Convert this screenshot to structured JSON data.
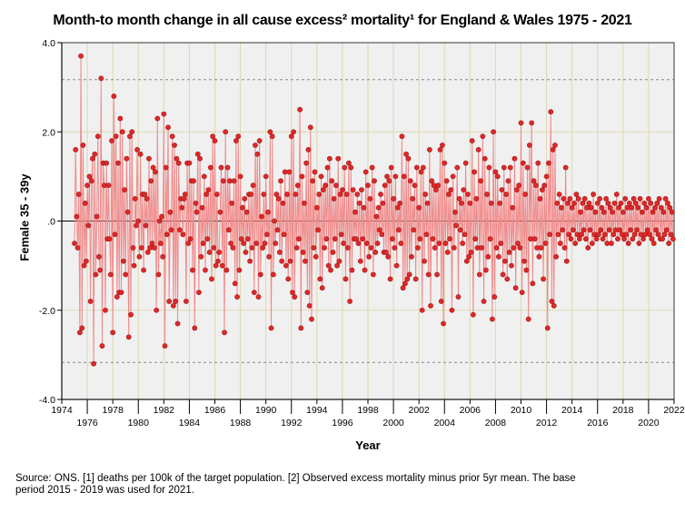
{
  "chart_data": {
    "type": "line",
    "title": "Month-to month change in all cause excess² mortality¹  for England & Wales 1975 - 2021",
    "xlabel": "Year",
    "ylabel": "Female 35 - 39y",
    "xlim": [
      1974,
      2022
    ],
    "ylim": [
      -4.0,
      4.0
    ],
    "x_ticks": [
      "1974",
      "1976",
      "1978",
      "1980",
      "1982",
      "1984",
      "1986",
      "1988",
      "1990",
      "1992",
      "1994",
      "1996",
      "1998",
      "2000",
      "2002",
      "2004",
      "2006",
      "2008",
      "2010",
      "2012",
      "2014",
      "2016",
      "2018",
      "2020",
      "2022"
    ],
    "y_ticks": [
      {
        "v": 4,
        "label": "4.0"
      },
      {
        "v": 2,
        "label": "2.0"
      },
      {
        "v": 0,
        "label": ".0"
      },
      {
        "v": -2,
        "label": "-2.0"
      },
      {
        "v": -4,
        "label": "-4.0"
      }
    ],
    "reference_lines": {
      "zero": 0,
      "upper_dashed": 3.17,
      "lower_dashed": -3.17
    },
    "grid": true,
    "start_year": 1975,
    "series": [
      {
        "name": "Female 35 - 39y",
        "color": "#e02828",
        "values_monthly": [
          -0.5,
          1.6,
          0.1,
          -0.6,
          0.6,
          -2.5,
          3.7,
          -2.4,
          1.7,
          -1.0,
          0.4,
          -0.9,
          0.8,
          -0.1,
          1.0,
          -1.8,
          0.9,
          1.4,
          -3.2,
          1.5,
          -1.2,
          0.1,
          1.9,
          -0.8,
          -1.1,
          3.2,
          -2.8,
          1.3,
          0.8,
          -2.0,
          1.3,
          -0.4,
          0.8,
          -0.4,
          -1.2,
          1.8,
          -2.5,
          2.8,
          -0.3,
          1.9,
          -1.7,
          1.3,
          -1.6,
          2.3,
          -1.6,
          2.0,
          -0.9,
          0.7,
          -1.2,
          1.4,
          0.2,
          -2.6,
          1.9,
          -2.1,
          2.0,
          -0.6,
          -1.0,
          0.5,
          -0.1,
          1.6,
          0.0,
          -0.8,
          1.5,
          -0.6,
          0.6,
          -1.1,
          0.6,
          -0.1,
          0.5,
          -0.7,
          1.4,
          -0.6,
          0.9,
          -0.5,
          1.2,
          -0.6,
          1.1,
          -2.0,
          2.3,
          -1.2,
          0.0,
          -0.5,
          0.1,
          -0.8,
          2.4,
          -2.8,
          1.2,
          -0.3,
          2.1,
          -1.8,
          0.2,
          -0.2,
          1.9,
          -1.9,
          1.7,
          -1.8,
          1.4,
          -2.3,
          1.3,
          -0.2,
          0.5,
          0.3,
          -0.3,
          0.5,
          0.6,
          -1.8,
          1.3,
          -0.5,
          1.3,
          -0.4,
          0.9,
          -1.1,
          0.9,
          -2.4,
          0.4,
          0.2,
          1.5,
          -1.6,
          1.4,
          -0.8,
          0.3,
          -0.5,
          1.0,
          -1.1,
          0.6,
          -0.4,
          0.7,
          -0.7,
          1.2,
          -1.3,
          1.9,
          -0.6,
          1.8,
          -1.0,
          0.6,
          -0.9,
          -0.7,
          0.2,
          1.2,
          -1.0,
          0.9,
          -2.5,
          2.0,
          -1.1,
          1.2,
          -0.2,
          0.9,
          -0.5,
          0.4,
          -0.6,
          0.9,
          -1.4,
          1.8,
          -1.7,
          1.9,
          -1.1,
          1.0,
          -0.4,
          0.3,
          -0.5,
          0.5,
          -0.7,
          0.2,
          -0.4,
          0.6,
          -0.9,
          0.6,
          -0.6,
          0.8,
          -1.6,
          1.7,
          -0.5,
          1.5,
          -1.7,
          1.8,
          -1.2,
          0.1,
          -0.6,
          0.6,
          -0.5,
          1.0,
          -0.3,
          0.2,
          -0.8,
          2.0,
          -2.4,
          1.9,
          -1.2,
          0.0,
          -0.5,
          0.6,
          -0.2,
          0.5,
          -0.7,
          0.9,
          -0.9,
          0.4,
          -0.3,
          1.1,
          -1.0,
          0.6,
          -1.3,
          1.1,
          -0.9,
          1.9,
          -1.6,
          2.0,
          -1.7,
          0.6,
          -0.6,
          0.8,
          -0.4,
          2.5,
          -2.4,
          1.0,
          -0.7,
          0.4,
          -0.9,
          1.3,
          -1.6,
          1.6,
          -1.9,
          2.1,
          -2.2,
          0.9,
          -0.6,
          1.1,
          -0.8,
          0.3,
          -0.2,
          0.6,
          -1.3,
          1.0,
          -1.5,
          0.7,
          -0.6,
          0.8,
          -0.4,
          1.2,
          -1.0,
          1.4,
          -1.1,
          0.9,
          -0.7,
          0.5,
          -0.4,
          0.8,
          -1.0,
          1.4,
          -0.9,
          0.6,
          -0.3,
          0.7,
          -0.5,
          1.2,
          -1.3,
          0.6,
          -0.6,
          1.3,
          -1.8,
          1.2,
          -1.1,
          0.7,
          -0.4,
          0.2,
          -0.4,
          0.6,
          -0.5,
          0.4,
          -0.9,
          0.7,
          -0.4,
          0.3,
          -1.1,
          1.1,
          -0.5,
          0.8,
          -0.8,
          0.5,
          -0.6,
          1.2,
          -1.2,
          0.9,
          -0.7,
          0.1,
          -0.5,
          0.3,
          -0.2,
          0.6,
          -0.3,
          0.4,
          -0.7,
          0.8,
          -0.7,
          1.0,
          -0.8,
          0.9,
          -1.3,
          1.2,
          -0.4,
          0.5,
          -0.6,
          1.0,
          -1.0,
          0.3,
          -0.2,
          0.4,
          -0.5,
          1.9,
          -1.5,
          1.0,
          -1.4,
          1.5,
          -1.3,
          1.4,
          -1.2,
          0.9,
          -0.8,
          0.5,
          -0.2,
          0.8,
          -1.3,
          1.2,
          -0.6,
          0.3,
          -0.4,
          1.1,
          -2.0,
          1.2,
          -0.9,
          0.6,
          -0.3,
          0.4,
          -1.2,
          1.6,
          -1.9,
          0.9,
          -0.4,
          0.8,
          -0.6,
          0.7,
          -1.2,
          0.8,
          -0.5,
          1.6,
          -1.8,
          1.7,
          -2.3,
          1.3,
          -0.5,
          0.9,
          -0.7,
          0.6,
          -0.4,
          0.7,
          -2.0,
          1.0,
          -0.6,
          0.2,
          -0.1,
          1.2,
          -1.7,
          0.5,
          -0.2,
          0.4,
          -0.5,
          0.7,
          -0.3,
          1.3,
          -0.9,
          0.6,
          -0.8,
          0.4,
          -0.7,
          1.8,
          -2.1,
          1.1,
          -0.4,
          0.5,
          -0.6,
          1.6,
          -1.2,
          0.9,
          -0.6,
          1.9,
          -1.8,
          1.4,
          -1.1,
          0.6,
          -0.8,
          1.2,
          -0.4,
          0.4,
          -2.2,
          2.0,
          -1.7,
          1.1,
          -0.6,
          1.0,
          -0.8,
          0.4,
          -0.5,
          0.7,
          -1.2,
          1.2,
          -0.9,
          0.6,
          -1.3,
          0.9,
          -0.7,
          1.2,
          -1.0,
          0.3,
          -0.6,
          1.4,
          -1.5,
          0.7,
          -0.5,
          0.8,
          -0.6,
          2.2,
          -1.6,
          1.3,
          -0.9,
          0.6,
          -1.1,
          1.2,
          -2.2,
          1.7,
          -0.4,
          2.2,
          -1.4,
          0.9,
          -0.4,
          0.8,
          -0.6,
          1.3,
          -0.8,
          0.5,
          -0.6,
          0.7,
          -1.3,
          0.8,
          -0.5,
          1.0,
          -2.4,
          1.3,
          -0.3,
          2.45,
          -1.8,
          1.6,
          -1.9,
          1.7,
          -0.8,
          0.4,
          -0.3,
          0.6,
          -0.5,
          0.3,
          -0.2,
          0.5,
          -0.6,
          1.2,
          -0.9,
          0.4,
          -0.3,
          0.5,
          -0.4,
          0.3,
          -0.2,
          0.4,
          -0.5,
          0.6,
          -0.3,
          0.5,
          -0.4,
          0.2,
          -0.3,
          0.4,
          -0.2,
          0.5,
          -0.4,
          0.3,
          -0.6,
          0.4,
          -0.2,
          0.3,
          -0.5,
          0.6,
          -0.3,
          0.2,
          -0.4,
          0.4,
          -0.3,
          0.5,
          -0.2,
          0.3,
          -0.4,
          0.2,
          -0.3,
          0.5,
          -0.5,
          0.4,
          -0.2,
          0.3,
          -0.5,
          0.2,
          -0.3,
          0.4,
          -0.2,
          0.6,
          -0.4,
          0.3,
          -0.2,
          0.4,
          -0.3,
          0.2,
          -0.4,
          0.5,
          -0.3,
          0.3,
          -0.5,
          0.4,
          -0.2,
          0.3,
          -0.4,
          0.5,
          -0.3,
          0.4,
          -0.2,
          0.3,
          -0.5,
          0.5,
          -0.3,
          0.2,
          -0.4,
          0.4,
          -0.3,
          0.3,
          -0.2,
          0.5,
          -0.3,
          0.4,
          -0.4,
          0.2,
          -0.5,
          0.3,
          -0.2,
          0.4,
          -0.3,
          0.5,
          -0.4,
          0.3,
          -0.4,
          0.2,
          -0.3,
          0.5,
          -0.2,
          0.4,
          -0.5,
          0.3,
          -0.3,
          0.2,
          -0.4
        ]
      }
    ]
  },
  "footnote": {
    "line1": "Source: ONS. [1] deaths per 100k of the target population. [2] Observed excess mortality minus prior 5yr mean. The base",
    "line2": "period 2015 - 2019 was used for 2021."
  }
}
